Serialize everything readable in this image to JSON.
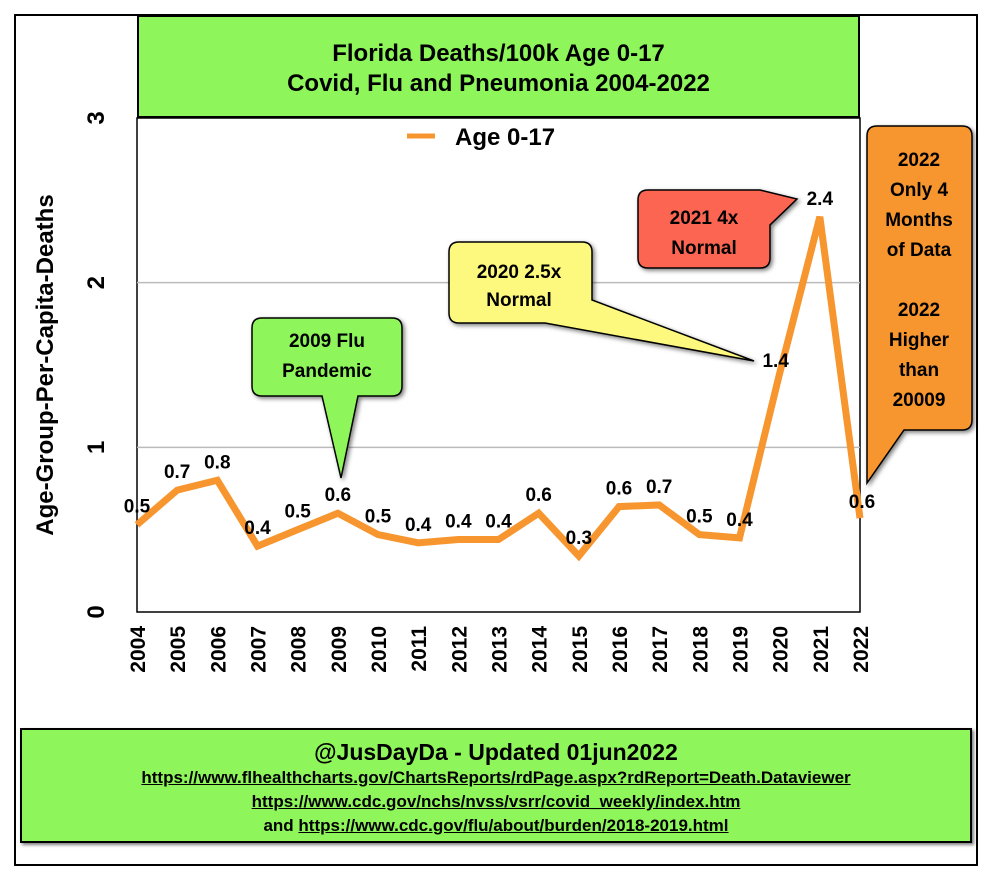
{
  "chart_data": {
    "type": "line",
    "title": [
      "Florida Deaths/100k Age 0-17",
      "Covid, Flu and Pneumonia 2004-2022"
    ],
    "xlabel": "",
    "ylabel": "Age-Group-Per-Capita-Deaths",
    "ylim": [
      0,
      3
    ],
    "yticks": [
      "0",
      "1",
      "2",
      "3"
    ],
    "grid": true,
    "legend": {
      "placement": "top-center",
      "entries": [
        "Age 0-17"
      ]
    },
    "categories": [
      "2004",
      "2005",
      "2006",
      "2007",
      "2008",
      "2009",
      "2010",
      "2011",
      "2012",
      "2013",
      "2014",
      "2015",
      "2016",
      "2017",
      "2018",
      "2019",
      "2020",
      "2021",
      "2022"
    ],
    "series": [
      {
        "name": "Age 0-17",
        "color": "#f7952e",
        "values": [
          0.53,
          0.74,
          0.8,
          0.4,
          0.5,
          0.6,
          0.47,
          0.42,
          0.44,
          0.44,
          0.6,
          0.34,
          0.64,
          0.65,
          0.47,
          0.45,
          1.45,
          2.4,
          0.57
        ],
        "labels": [
          "0.5",
          "0.7",
          "0.8",
          "0.4",
          "0.5",
          "0.6",
          "0.5",
          "0.4",
          "0.4",
          "0.4",
          "0.6",
          "0.3",
          "0.6",
          "0.7",
          "0.5",
          "0.4",
          "1.4",
          "2.4",
          "0.6"
        ]
      }
    ],
    "annotations": [
      {
        "text": [
          "2009 Flu",
          "Pandemic"
        ],
        "target": "2009",
        "color": "#8ef65a"
      },
      {
        "text": [
          "2020 2.5x",
          "Normal"
        ],
        "target": "2020",
        "color": "#fdf97e"
      },
      {
        "text": [
          "2021 4x",
          "Normal"
        ],
        "target": "2021",
        "color": "#fc6552"
      },
      {
        "text": [
          "2022",
          "Only 4",
          "Months",
          "of Data",
          "",
          "2022",
          "Higher",
          "than",
          "20009"
        ],
        "target": "2022",
        "color": "#f7952e"
      }
    ]
  },
  "footer": {
    "handle": "@JusDayDa - Updated 01jun2022",
    "link1": "https://www.flhealthcharts.gov/ChartsReports/rdPage.aspx?rdReport=Death.Dataviewer",
    "link2": "https://www.cdc.gov/nchs/nvss/vsrr/covid_weekly/index.htm",
    "link3_prefix": "and ",
    "link3": "https://www.cdc.gov/flu/about/burden/2018-2019.html"
  },
  "colors": {
    "panel_green": "#8ef65a",
    "line_orange": "#f7952e",
    "grid": "#bbbbbb"
  }
}
